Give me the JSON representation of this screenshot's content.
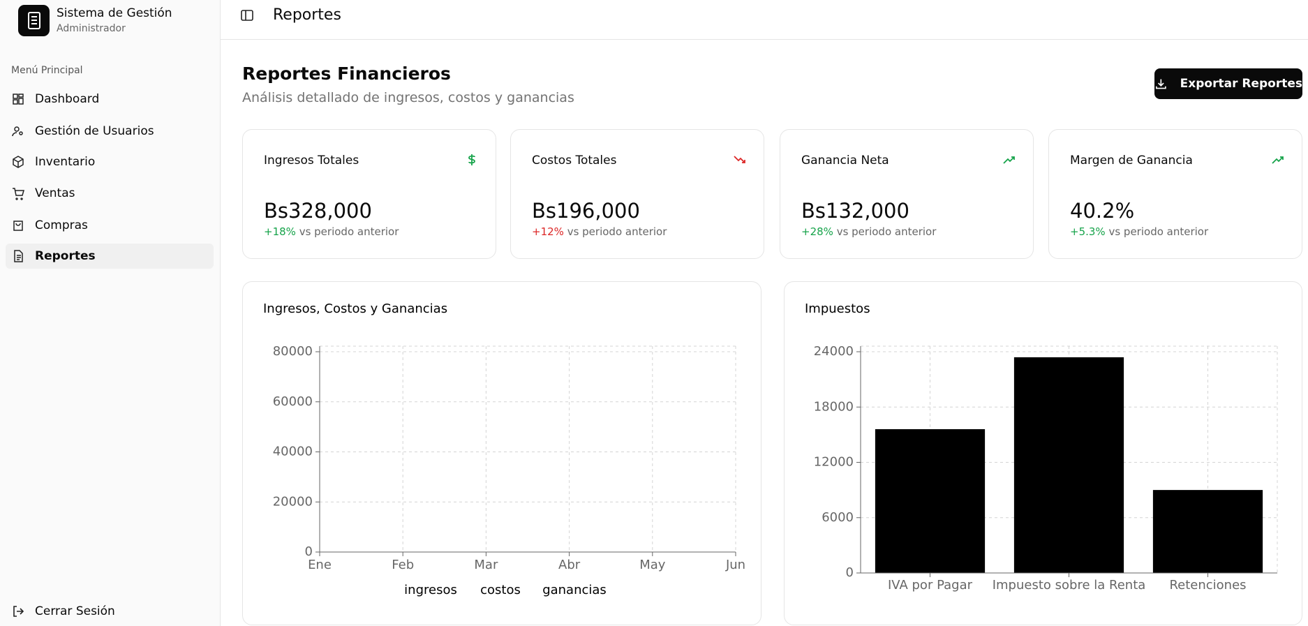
{
  "sidebar": {
    "app_title": "Sistema de Gestión",
    "role": "Administrador",
    "menu_label": "Menú Principal",
    "menu": [
      "Dashboard",
      "Gestión de Usuarios",
      "Inventario",
      "Ventas",
      "Compras",
      "Reportes"
    ],
    "logout": "Cerrar Sesión"
  },
  "header": {
    "title": "Reportes"
  },
  "page": {
    "title": "Reportes Financieros",
    "subtitle": "Análisis detallado de ingresos, costos y ganancias",
    "export_button": "Exportar Reportes"
  },
  "stats": [
    {
      "label": "Ingresos Totales",
      "value": "Bs328,000",
      "change": "+18%",
      "note": "vs periodo anterior",
      "color": "#16a34a"
    },
    {
      "label": "Costos Totales",
      "value": "Bs196,000",
      "change": "+12%",
      "note": "vs periodo anterior",
      "color": "#dc2626"
    },
    {
      "label": "Ganancia Neta",
      "value": "Bs132,000",
      "change": "+28%",
      "note": "vs periodo anterior",
      "color": "#16a34a"
    },
    {
      "label": "Margen de Ganancia",
      "value": "40.2%",
      "change": "+5.3%",
      "note": "vs periodo anterior",
      "color": "#16a34a"
    }
  ],
  "chart_data": [
    {
      "type": "line",
      "title": "Ingresos, Costos y Ganancias",
      "categories": [
        "Ene",
        "Feb",
        "Mar",
        "Abr",
        "May",
        "Jun"
      ],
      "series": [
        {
          "name": "ingresos",
          "values": [
            null,
            null,
            null,
            null,
            null,
            null
          ]
        },
        {
          "name": "costos",
          "values": [
            null,
            null,
            null,
            null,
            null,
            null
          ]
        },
        {
          "name": "ganancias",
          "values": [
            null,
            null,
            null,
            null,
            null,
            null
          ]
        }
      ],
      "ylim": [
        0,
        80000
      ],
      "yticks": [
        0,
        20000,
        40000,
        60000,
        80000
      ],
      "grid": true
    },
    {
      "type": "bar",
      "title": "Impuestos",
      "categories": [
        "IVA por Pagar",
        "Impuesto sobre la Renta",
        "Retenciones"
      ],
      "values": [
        15600,
        23400,
        9000
      ],
      "color": "#000000",
      "ylim": [
        0,
        24000
      ],
      "yticks": [
        0,
        6000,
        12000,
        18000,
        24000
      ],
      "grid": true
    }
  ]
}
